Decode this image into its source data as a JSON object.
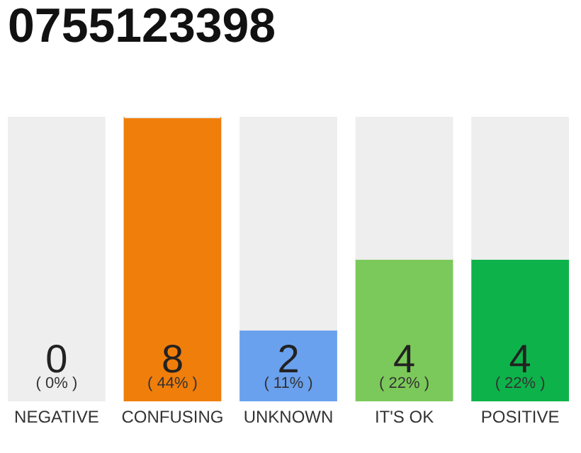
{
  "chart_data": {
    "type": "bar",
    "title": "0755123398",
    "categories": [
      "NEGATIVE",
      "CONFUSING",
      "UNKNOWN",
      "IT'S OK",
      "POSITIVE"
    ],
    "stacked": true,
    "series": [
      {
        "colors": [
          "#555555",
          "#f07e0b",
          "#6aa1ee",
          "#7cc95b",
          "#0db34a"
        ],
        "values": [
          0,
          44,
          11,
          22,
          22
        ],
        "value_labels": [
          "( 0% )",
          "( 44% )",
          "( 11% )",
          "( 22% )",
          "( 22% )"
        ]
      },
      {
        "color": "#eeeeee",
        "values": [
          44,
          0,
          33,
          22,
          22
        ]
      }
    ],
    "annotations": [
      "0",
      "8",
      "2",
      "4",
      "4"
    ],
    "grid": false,
    "legend": false
  }
}
